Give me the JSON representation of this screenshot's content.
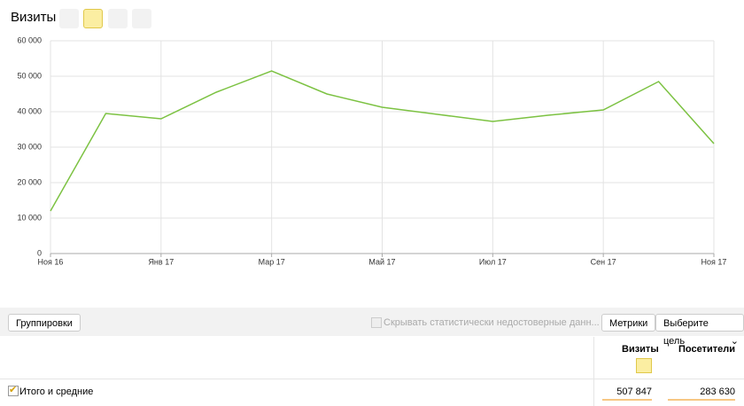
{
  "chart_data": {
    "type": "line",
    "title": "Визиты",
    "categories": [
      "Ноя 16",
      null,
      "Янв 17",
      null,
      "Мар 17",
      null,
      "Май 17",
      null,
      "Июл 17",
      null,
      "Сен 17",
      null,
      "Ноя 17"
    ],
    "series": [
      {
        "name": "Визиты",
        "color": "#7cc242",
        "values": [
          12000,
          39500,
          38000,
          45500,
          51500,
          45000,
          41250,
          39250,
          37250,
          39000,
          40500,
          48500,
          31000
        ]
      }
    ],
    "ylim": [
      0,
      60000
    ],
    "yticks": [
      0,
      {
        "value": 10000,
        "label": "10 000"
      },
      {
        "value": 20000,
        "label": "20 000"
      },
      {
        "value": 30000,
        "label": "30 000"
      },
      {
        "value": 40000,
        "label": "40 000"
      },
      {
        "value": 50000,
        "label": "50 000"
      },
      {
        "value": 60000,
        "label": "60 000"
      }
    ],
    "grid": true
  },
  "toolbar": {
    "groupings": "Группировки",
    "hide_unreliable": "Скрывать статистически недостоверные данн...",
    "metrics": "Метрики",
    "choose_goal": "Выберите цель"
  },
  "table": {
    "columns": [
      "Визиты",
      "Посетители"
    ],
    "rows": [
      {
        "label": "Итого и средние",
        "values": [
          "507 847",
          "283 630"
        ]
      }
    ]
  }
}
